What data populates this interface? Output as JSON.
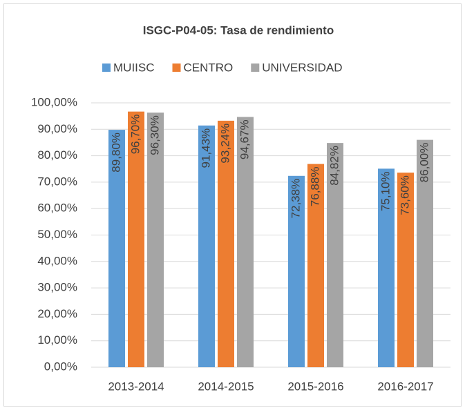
{
  "chart_data": {
    "type": "bar",
    "title": "ISGC-P04-05: Tasa de rendimiento",
    "categories": [
      "2013-2014",
      "2014-2015",
      "2015-2016",
      "2016-2017"
    ],
    "series": [
      {
        "name": "MUIISC",
        "color": "#5B9BD5",
        "values": [
          89.8,
          91.43,
          72.38,
          75.1
        ],
        "value_labels": [
          "89,80%",
          "91,43%",
          "72,38%",
          "75,10%"
        ]
      },
      {
        "name": "CENTRO",
        "color": "#ED7D31",
        "values": [
          96.7,
          93.24,
          76.88,
          73.6
        ],
        "value_labels": [
          "96,70%",
          "93,24%",
          "76,88%",
          "73,60%"
        ]
      },
      {
        "name": "UNIVERSIDAD",
        "color": "#A5A5A5",
        "values": [
          96.3,
          94.67,
          84.82,
          86.0
        ],
        "value_labels": [
          "96,30%",
          "94,67%",
          "84,82%",
          "86,00%"
        ]
      }
    ],
    "ylim": [
      0,
      100
    ],
    "yticks": [
      {
        "value": 0,
        "label": "0,00%"
      },
      {
        "value": 10,
        "label": "10,00%"
      },
      {
        "value": 20,
        "label": "20,00%"
      },
      {
        "value": 30,
        "label": "30,00%"
      },
      {
        "value": 40,
        "label": "40,00%"
      },
      {
        "value": 50,
        "label": "50,00%"
      },
      {
        "value": 60,
        "label": "60,00%"
      },
      {
        "value": 70,
        "label": "70,00%"
      },
      {
        "value": 80,
        "label": "80,00%"
      },
      {
        "value": 90,
        "label": "90,00%"
      },
      {
        "value": 100,
        "label": "100,00%"
      }
    ],
    "grid": true,
    "legend": "top"
  }
}
